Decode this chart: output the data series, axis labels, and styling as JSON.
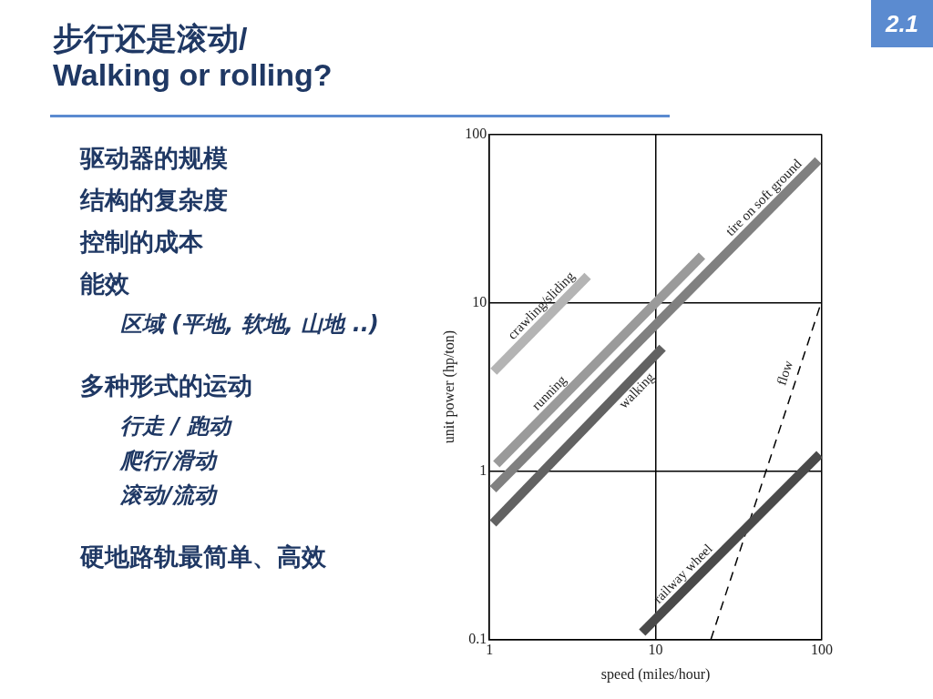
{
  "chart_data": {
    "type": "line",
    "title": "步行还是滚动/ Walking or rolling?",
    "xlabel": "speed (miles/hour)",
    "ylabel": "unit power (hp/ton)",
    "log": "xy",
    "grid": true,
    "legend": false,
    "marker": "none",
    "xlim": [
      1,
      100
    ],
    "ylim": [
      0.1,
      100
    ],
    "xticks": [
      1,
      10,
      100
    ],
    "yticks": [
      0.1,
      1,
      10,
      100
    ],
    "series": [
      {
        "name": "crawling/sliding",
        "color": "#b4b4b4",
        "x": [
          1.06,
          3.9
        ],
        "values": [
          3.9,
          14.4
        ]
      },
      {
        "name": "running",
        "color": "#9a9a9a",
        "x": [
          1.1,
          19
        ],
        "values": [
          1.1,
          19
        ]
      },
      {
        "name": "tire on soft ground",
        "color": "#808080",
        "x": [
          1.05,
          95
        ],
        "values": [
          0.78,
          70
        ]
      },
      {
        "name": "walking",
        "color": "#626262",
        "x": [
          1.05,
          11
        ],
        "values": [
          0.49,
          5.4
        ]
      },
      {
        "name": "railway wheel",
        "color": "#4a4a4a",
        "x": [
          8.3,
          97
        ],
        "values": [
          0.11,
          1.26
        ]
      },
      {
        "name": "flow",
        "color": "#000000",
        "line_style": "dashed",
        "x": [
          21.5,
          99
        ],
        "values": [
          0.1,
          10
        ]
      }
    ],
    "annotations": [
      "2.1",
      "驱动器的规模",
      "结构的复杂度",
      "控制的成本",
      "能效",
      "区域 (平地, 软地, 山地 ..)",
      "多种形式的运动",
      "行走 / 跑动",
      "爬行/滑动",
      "滚动/流动",
      "硬地路轨最简单、高效"
    ]
  }
}
